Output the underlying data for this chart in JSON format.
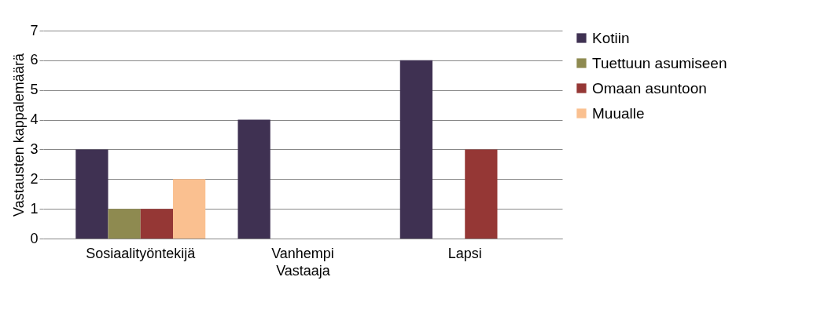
{
  "chart_data": {
    "type": "bar",
    "xlabel": "Vastaaja",
    "ylabel": "Vastausten kappalemäärä",
    "categories": [
      "Sosiaalityöntekijä",
      "Vanhempi",
      "Lapsi"
    ],
    "series": [
      {
        "name": "Kotiin",
        "color": "#3f3152",
        "values": [
          3,
          4,
          6
        ]
      },
      {
        "name": "Tuettuun asumiseen",
        "color": "#8e8a50",
        "values": [
          1,
          0,
          0
        ]
      },
      {
        "name": "Omaan asuntoon",
        "color": "#953735",
        "values": [
          1,
          0,
          3
        ]
      },
      {
        "name": "Muualle",
        "color": "#fac090",
        "values": [
          2,
          0,
          0
        ]
      }
    ],
    "ylim": [
      0,
      7
    ],
    "yticks": [
      0,
      1,
      2,
      3,
      4,
      5,
      6,
      7
    ],
    "grid": "y",
    "legend": "right"
  }
}
